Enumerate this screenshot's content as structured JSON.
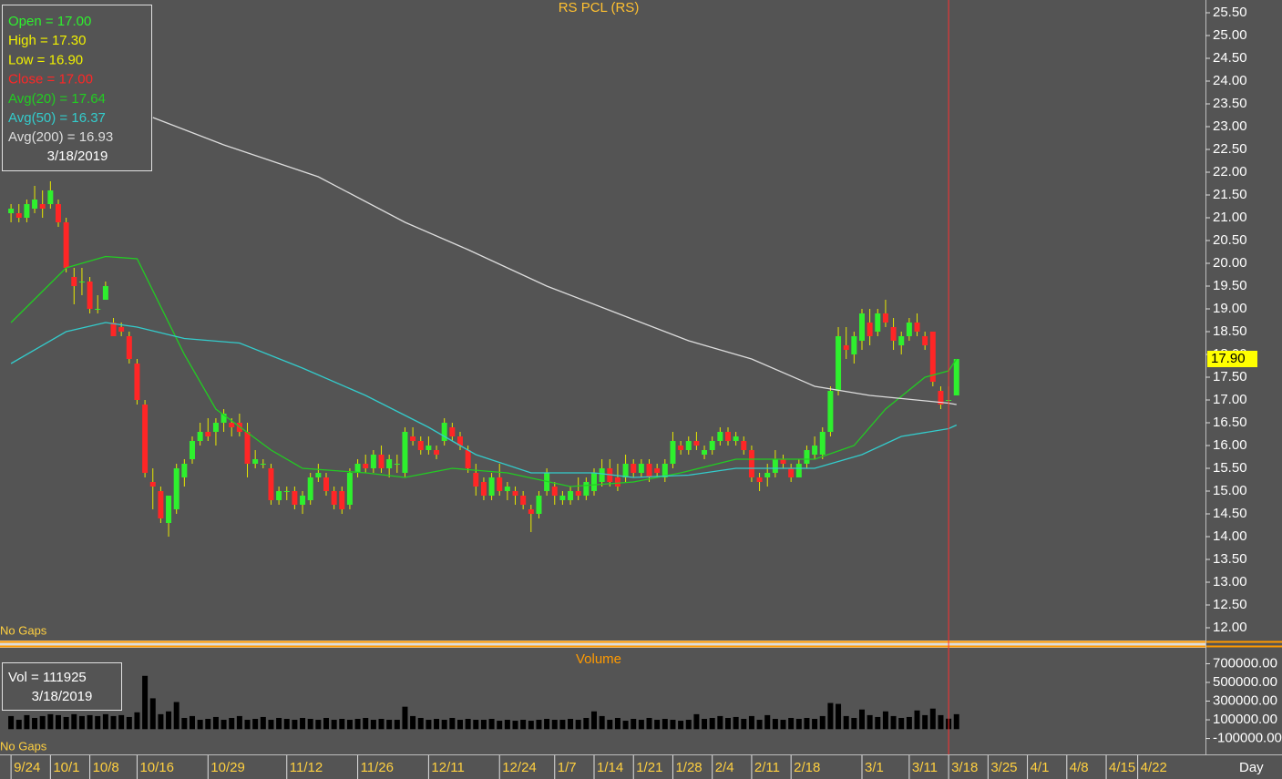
{
  "chart_data": [
    {
      "type": "candlestick",
      "title": "RS PCL (RS)",
      "open": [
        21.1,
        21.1,
        21.0,
        21.2,
        21.3,
        21.3,
        21.3,
        20.9,
        19.7,
        19.6,
        19.6,
        19.0,
        19.2,
        18.7,
        18.6,
        18.4,
        17.8,
        16.9,
        15.2,
        15.0,
        14.3,
        14.6,
        15.3,
        15.7,
        16.1,
        16.3,
        16.3,
        16.5,
        16.5,
        16.5,
        16.3,
        15.6,
        15.6,
        15.5,
        14.8,
        15.0,
        15.0,
        14.7,
        14.8,
        15.3,
        15.3,
        15.0,
        15.0,
        14.7,
        15.4,
        15.6,
        15.5,
        15.8,
        15.5,
        15.6,
        15.4,
        16.2,
        16.1,
        15.9,
        15.9,
        16.1,
        16.4,
        16.2,
        15.9,
        15.4,
        15.2,
        14.9,
        15.3,
        15.0,
        15.0,
        14.9,
        14.6,
        14.5,
        15.0,
        15.1,
        14.8,
        14.8,
        15.0,
        14.9,
        15.0,
        15.2,
        15.5,
        15.3,
        15.3,
        15.6,
        15.4,
        15.6,
        15.5,
        15.3,
        15.6,
        16.0,
        15.9,
        16.1,
        15.8,
        15.9,
        16.1,
        16.3,
        16.1,
        16.1,
        15.9,
        15.3,
        15.3,
        15.4,
        15.7,
        15.5,
        15.3,
        15.6,
        15.8,
        15.8,
        16.3,
        17.2,
        18.2,
        18.0,
        18.3,
        18.7,
        18.5,
        18.9,
        18.6,
        18.2,
        18.4,
        18.7,
        18.4,
        18.5,
        17.2,
        17.0,
        17.1
      ],
      "high": [
        21.3,
        21.3,
        21.4,
        21.7,
        21.6,
        21.8,
        21.4,
        21.0,
        19.9,
        19.9,
        19.7,
        19.3,
        19.6,
        18.8,
        18.7,
        18.5,
        17.9,
        17.0,
        15.5,
        15.1,
        14.9,
        15.6,
        15.7,
        16.2,
        16.5,
        16.6,
        16.6,
        16.8,
        16.6,
        16.7,
        16.5,
        15.9,
        15.7,
        15.6,
        15.1,
        15.1,
        15.1,
        15.0,
        15.4,
        15.6,
        15.4,
        15.1,
        15.1,
        15.5,
        15.7,
        15.8,
        15.9,
        16.0,
        15.8,
        15.8,
        16.4,
        16.4,
        16.2,
        16.2,
        16.0,
        16.6,
        16.5,
        16.3,
        16.0,
        15.6,
        15.3,
        15.4,
        15.6,
        15.2,
        15.1,
        15.0,
        14.7,
        15.0,
        15.5,
        15.2,
        15.0,
        15.1,
        15.3,
        15.3,
        15.5,
        15.7,
        15.7,
        15.6,
        15.8,
        15.7,
        15.7,
        15.7,
        15.6,
        15.7,
        16.3,
        16.1,
        16.2,
        16.3,
        16.0,
        16.2,
        16.4,
        16.4,
        16.3,
        16.2,
        16.0,
        15.4,
        15.6,
        15.9,
        15.8,
        15.6,
        15.7,
        16.0,
        16.2,
        16.4,
        17.3,
        18.6,
        18.6,
        18.5,
        19.0,
        19.0,
        19.0,
        19.2,
        18.8,
        18.5,
        18.8,
        18.9,
        18.5,
        18.5,
        17.3,
        17.3,
        17.9
      ],
      "low": [
        20.9,
        20.9,
        20.9,
        21.1,
        21.0,
        21.2,
        20.8,
        19.8,
        19.1,
        19.3,
        18.9,
        18.9,
        19.2,
        18.4,
        18.4,
        17.8,
        16.9,
        15.3,
        14.6,
        14.3,
        14.0,
        14.5,
        15.1,
        15.6,
        16.0,
        16.1,
        16.0,
        16.3,
        16.2,
        16.2,
        15.3,
        15.5,
        15.5,
        14.7,
        14.7,
        14.8,
        14.6,
        14.5,
        14.7,
        15.2,
        14.9,
        14.6,
        14.5,
        14.6,
        15.3,
        15.4,
        15.4,
        15.4,
        15.3,
        15.4,
        15.3,
        16.0,
        15.8,
        15.8,
        15.7,
        16.0,
        16.1,
        15.9,
        15.4,
        14.9,
        14.8,
        14.8,
        14.9,
        14.8,
        14.7,
        14.6,
        14.1,
        14.4,
        14.9,
        14.7,
        14.7,
        14.7,
        14.8,
        14.8,
        14.9,
        15.1,
        15.1,
        15.0,
        15.2,
        15.3,
        15.3,
        15.2,
        15.3,
        15.2,
        15.5,
        15.8,
        15.8,
        15.9,
        15.7,
        15.8,
        16.0,
        16.0,
        16.0,
        15.8,
        15.2,
        15.0,
        15.1,
        15.3,
        15.5,
        15.2,
        15.3,
        15.5,
        15.7,
        15.7,
        16.2,
        17.1,
        17.9,
        17.8,
        18.1,
        18.2,
        18.4,
        18.6,
        18.1,
        18.0,
        18.3,
        18.4,
        18.1,
        17.3,
        16.8,
        16.9,
        17.1
      ],
      "close": [
        21.2,
        21.0,
        21.3,
        21.4,
        21.2,
        21.6,
        20.9,
        19.9,
        19.5,
        19.6,
        19.0,
        19.0,
        19.5,
        18.4,
        18.5,
        17.9,
        17.0,
        15.4,
        15.1,
        14.4,
        14.9,
        15.5,
        15.6,
        16.1,
        16.3,
        16.2,
        16.5,
        16.7,
        16.4,
        16.3,
        15.6,
        15.7,
        15.6,
        14.8,
        15.0,
        15.0,
        14.7,
        14.9,
        15.3,
        15.4,
        15.0,
        14.7,
        14.6,
        15.4,
        15.6,
        15.5,
        15.8,
        15.5,
        15.7,
        15.6,
        16.3,
        16.1,
        15.9,
        16.0,
        15.8,
        16.5,
        16.2,
        16.0,
        15.5,
        15.1,
        14.9,
        15.3,
        15.0,
        15.1,
        14.9,
        14.7,
        14.5,
        14.9,
        15.4,
        14.9,
        14.9,
        15.0,
        14.9,
        15.2,
        15.4,
        15.5,
        15.2,
        15.1,
        15.6,
        15.4,
        15.6,
        15.3,
        15.4,
        15.6,
        16.1,
        15.9,
        16.1,
        16.0,
        15.9,
        16.1,
        16.3,
        16.1,
        16.2,
        15.9,
        15.3,
        15.2,
        15.4,
        15.7,
        15.6,
        15.3,
        15.6,
        15.9,
        16.0,
        16.3,
        17.2,
        18.4,
        18.1,
        18.4,
        18.9,
        18.4,
        18.9,
        18.7,
        18.3,
        18.4,
        18.7,
        18.5,
        18.2,
        17.4,
        16.9,
        17.0,
        17.9
      ],
      "up_color": "#2ef02e",
      "down_color": "#ff2626",
      "wick_color": "#e8e800",
      "series": [
        {
          "name": "Avg(20) = 17.64",
          "color": "#22cc22",
          "x": [
            0,
            7,
            12,
            16,
            22,
            26,
            33,
            37,
            45,
            50,
            56,
            63,
            71,
            79,
            85,
            92,
            102,
            107,
            111,
            116,
            119,
            120
          ],
          "values": [
            18.7,
            19.9,
            20.15,
            20.1,
            18.0,
            16.8,
            15.9,
            15.5,
            15.4,
            15.3,
            15.5,
            15.4,
            15.1,
            15.2,
            15.4,
            15.7,
            15.7,
            16.0,
            16.8,
            17.5,
            17.64,
            17.9
          ]
        },
        {
          "name": "Avg(50) = 16.37",
          "color": "#33cccc",
          "x": [
            0,
            7,
            12,
            16,
            22,
            29,
            37,
            45,
            53,
            59,
            66,
            74,
            79,
            86,
            92,
            102,
            108,
            113,
            119,
            120
          ],
          "values": [
            17.8,
            18.5,
            18.7,
            18.6,
            18.35,
            18.25,
            17.7,
            17.1,
            16.4,
            15.8,
            15.4,
            15.4,
            15.3,
            15.35,
            15.5,
            15.5,
            15.8,
            16.2,
            16.37,
            16.45
          ]
        },
        {
          "name": "Avg(200) = 16.93",
          "color": "#dddddd",
          "x": [
            18,
            27,
            39,
            50,
            58,
            68,
            77,
            86,
            94,
            102,
            109,
            119,
            120
          ],
          "values": [
            23.2,
            22.6,
            21.9,
            20.9,
            20.3,
            19.5,
            18.9,
            18.3,
            17.9,
            17.3,
            17.1,
            16.93,
            16.9
          ]
        }
      ],
      "info_labels": [
        {
          "label": "Open = 17.00",
          "color": "#2ef02e"
        },
        {
          "label": "High = 17.30",
          "color": "#f0f000"
        },
        {
          "label": "Low = 16.90",
          "color": "#f0f000"
        },
        {
          "label": "Close = 17.00",
          "color": "#ff2626"
        }
      ],
      "date_label": "3/18/2019",
      "xlim": [
        -1.4,
        151.6
      ],
      "ylim": [
        11.72,
        25.78
      ],
      "yticks": [
        {
          "value": 12,
          "label": "12.00"
        },
        {
          "value": 12.5,
          "label": "12.50"
        },
        {
          "value": 13,
          "label": "13.00"
        },
        {
          "value": 13.5,
          "label": "13.50"
        },
        {
          "value": 14,
          "label": "14.00"
        },
        {
          "value": 14.5,
          "label": "14.50"
        },
        {
          "value": 15,
          "label": "15.00"
        },
        {
          "value": 15.5,
          "label": "15.50"
        },
        {
          "value": 16,
          "label": "16.00"
        },
        {
          "value": 16.5,
          "label": "16.50"
        },
        {
          "value": 17,
          "label": "17.00"
        },
        {
          "value": 17.5,
          "label": "17.50"
        },
        {
          "value": 18,
          "label": "18.00"
        },
        {
          "value": 18.5,
          "label": "18.50"
        },
        {
          "value": 19,
          "label": "19.00"
        },
        {
          "value": 19.5,
          "label": "19.50"
        },
        {
          "value": 20,
          "label": "20.00"
        },
        {
          "value": 20.5,
          "label": "20.50"
        },
        {
          "value": 21,
          "label": "21.00"
        },
        {
          "value": 21.5,
          "label": "21.50"
        },
        {
          "value": 22,
          "label": "22.00"
        },
        {
          "value": 22.5,
          "label": "22.50"
        },
        {
          "value": 23,
          "label": "23.00"
        },
        {
          "value": 23.5,
          "label": "23.50"
        },
        {
          "value": 24,
          "label": "24.00"
        },
        {
          "value": 24.5,
          "label": "24.50"
        },
        {
          "value": 25,
          "label": "25.00"
        },
        {
          "value": 25.5,
          "label": "25.50"
        }
      ],
      "last_price": {
        "value": 17.9,
        "label": "17.90"
      },
      "cursor_x": 119,
      "annotation": "No Gaps"
    },
    {
      "type": "bar",
      "title": "Volume",
      "color": "#000000",
      "values": [
        140000,
        100000,
        150000,
        120000,
        140000,
        160000,
        150000,
        130000,
        160000,
        140000,
        150000,
        140000,
        160000,
        140000,
        150000,
        130000,
        180000,
        570000,
        330000,
        160000,
        190000,
        290000,
        120000,
        140000,
        100000,
        110000,
        130000,
        100000,
        120000,
        140000,
        100000,
        110000,
        130000,
        100000,
        120000,
        110000,
        100000,
        120000,
        110000,
        100000,
        120000,
        100000,
        110000,
        100000,
        110000,
        120000,
        100000,
        110000,
        100000,
        100000,
        240000,
        140000,
        120000,
        100000,
        110000,
        100000,
        120000,
        100000,
        110000,
        100000,
        100000,
        110000,
        90000,
        100000,
        90000,
        100000,
        90000,
        100000,
        110000,
        100000,
        100000,
        110000,
        100000,
        120000,
        190000,
        140000,
        100000,
        120000,
        90000,
        110000,
        100000,
        120000,
        100000,
        110000,
        100000,
        90000,
        100000,
        160000,
        110000,
        120000,
        140000,
        120000,
        130000,
        110000,
        140000,
        100000,
        150000,
        110000,
        100000,
        120000,
        110000,
        120000,
        110000,
        140000,
        280000,
        270000,
        140000,
        120000,
        210000,
        150000,
        130000,
        190000,
        140000,
        120000,
        130000,
        200000,
        150000,
        220000,
        150000,
        111925,
        160000
      ],
      "info_labels": [
        {
          "label": "Vol = 111925",
          "color": "#ffffff"
        }
      ],
      "date_label": "3/18/2019",
      "xlim": [
        -1.4,
        151.6
      ],
      "ylim": [
        -270000,
        870000
      ],
      "yticks": [
        {
          "value": 700000,
          "label": "700000.00"
        },
        {
          "value": 500000,
          "label": "500000.00"
        },
        {
          "value": 300000,
          "label": "300000.00"
        },
        {
          "value": 100000,
          "label": "100000.00"
        },
        {
          "value": -100000,
          "label": "-100000.00"
        }
      ],
      "xticks": [
        {
          "value": 0,
          "label": "9/24"
        },
        {
          "value": 5,
          "label": "10/1"
        },
        {
          "value": 10,
          "label": "10/8"
        },
        {
          "value": 16,
          "label": "10/16"
        },
        {
          "value": 25,
          "label": "10/29"
        },
        {
          "value": 35,
          "label": "11/12"
        },
        {
          "value": 44,
          "label": "11/26"
        },
        {
          "value": 53,
          "label": "12/11"
        },
        {
          "value": 62,
          "label": "12/24"
        },
        {
          "value": 69,
          "label": "1/7"
        },
        {
          "value": 74,
          "label": "1/14"
        },
        {
          "value": 79,
          "label": "1/21"
        },
        {
          "value": 84,
          "label": "1/28"
        },
        {
          "value": 89,
          "label": "2/4"
        },
        {
          "value": 94,
          "label": "2/11"
        },
        {
          "value": 99,
          "label": "2/18"
        },
        {
          "value": 108,
          "label": "3/1"
        },
        {
          "value": 114,
          "label": "3/11"
        },
        {
          "value": 119,
          "label": "3/18"
        },
        {
          "value": 124,
          "label": "3/25"
        },
        {
          "value": 129,
          "label": "4/1"
        },
        {
          "value": 134,
          "label": "4/8"
        },
        {
          "value": 139,
          "label": "4/15"
        },
        {
          "value": 143,
          "label": "4/22"
        }
      ],
      "x_label": "Day",
      "annotation": "No Gaps"
    }
  ]
}
